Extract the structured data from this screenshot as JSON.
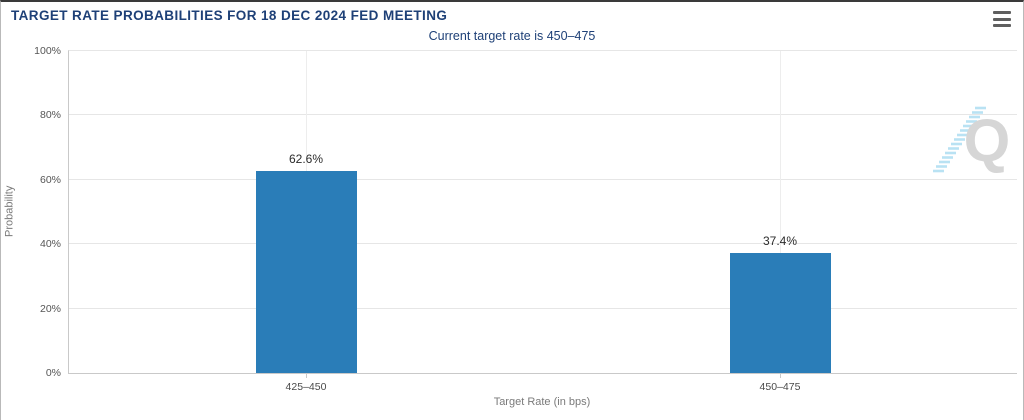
{
  "header": {
    "title": "TARGET RATE PROBABILITIES FOR 18 DEC 2024 FED MEETING",
    "subtitle": "Current target rate is 450–475"
  },
  "watermark": {
    "letter": "Q"
  },
  "colors": {
    "bar": "#2a7db8",
    "heading": "#1e4077",
    "grid": "#e6e6e6",
    "axis": "#c9c9c9",
    "value_label": "#2b2b2b",
    "tick_label": "#555555",
    "axis_title": "#7a7a7a"
  },
  "chart_data": {
    "type": "bar",
    "title": "TARGET RATE PROBABILITIES FOR 18 DEC 2024 FED MEETING",
    "subtitle": "Current target rate is 450–475",
    "categories": [
      "425–450",
      "450–475"
    ],
    "values": [
      62.6,
      37.4
    ],
    "value_labels": [
      "62.6%",
      "37.4%"
    ],
    "xlabel": "Target Rate (in bps)",
    "ylabel": "Probability",
    "ylim": [
      0,
      100
    ],
    "yticks": [
      0,
      20,
      40,
      60,
      80,
      100
    ],
    "ytick_labels": [
      "0%",
      "20%",
      "40%",
      "60%",
      "80%",
      "100%"
    ],
    "grid": true,
    "legend_position": "none"
  }
}
